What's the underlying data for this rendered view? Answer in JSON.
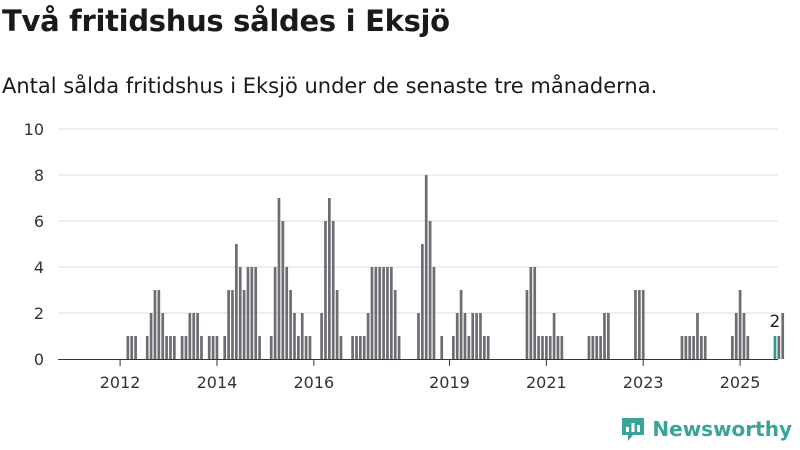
{
  "header": {
    "title": "Två fritidshus såldes i Eksjö",
    "subtitle": "Antal sålda fritidshus i Eksjö under de senaste tre månaderna."
  },
  "brand": {
    "name": "Newsworthy",
    "icon": "newsworthy-logo-icon",
    "color": "#3aa39a"
  },
  "colors": {
    "bar": "#6e6d73",
    "highlight": "#2a9d8f",
    "grid": "#dddddd"
  },
  "chart_data": {
    "type": "bar",
    "title": "Två fritidshus såldes i Eksjö",
    "subtitle": "Antal sålda fritidshus i Eksjö under de senaste tre månaderna.",
    "xlabel": "",
    "ylabel": "",
    "ylim": [
      0,
      10
    ],
    "yticks": [
      0,
      2,
      4,
      6,
      8,
      10
    ],
    "xtick_labels": [
      "2012",
      "2014",
      "2016",
      "2019",
      "2021",
      "2023",
      "2025"
    ],
    "xtick_index": [
      6,
      31,
      56,
      91,
      116,
      141,
      166
    ],
    "grid": true,
    "highlight_label": "2",
    "values": [
      0,
      0,
      0,
      0,
      0,
      0,
      0,
      0,
      1,
      1,
      1,
      0,
      0,
      1,
      2,
      3,
      3,
      2,
      1,
      1,
      1,
      0,
      1,
      1,
      2,
      2,
      2,
      1,
      0,
      1,
      1,
      1,
      0,
      1,
      3,
      3,
      5,
      4,
      3,
      4,
      4,
      4,
      1,
      0,
      0,
      1,
      4,
      7,
      6,
      4,
      3,
      2,
      1,
      2,
      1,
      1,
      0,
      0,
      2,
      6,
      7,
      6,
      3,
      1,
      0,
      0,
      1,
      1,
      1,
      1,
      2,
      4,
      4,
      4,
      4,
      4,
      4,
      3,
      1,
      0,
      0,
      0,
      0,
      2,
      5,
      8,
      6,
      4,
      0,
      1,
      0,
      0,
      1,
      2,
      3,
      2,
      1,
      2,
      2,
      2,
      1,
      1,
      0,
      0,
      0,
      0,
      0,
      0,
      0,
      0,
      0,
      3,
      4,
      4,
      1,
      1,
      1,
      1,
      2,
      1,
      1,
      0,
      0,
      0,
      0,
      0,
      0,
      1,
      1,
      1,
      1,
      2,
      2,
      0,
      0,
      0,
      0,
      0,
      0,
      3,
      3,
      3,
      0,
      0,
      0,
      0,
      0,
      0,
      0,
      0,
      0,
      1,
      1,
      1,
      1,
      2,
      1,
      1,
      0,
      0,
      0,
      0,
      0,
      0,
      1,
      2,
      3,
      2,
      1,
      0,
      0,
      0,
      0,
      0,
      0,
      1,
      1,
      2
    ],
    "highlight_index": 175
  }
}
